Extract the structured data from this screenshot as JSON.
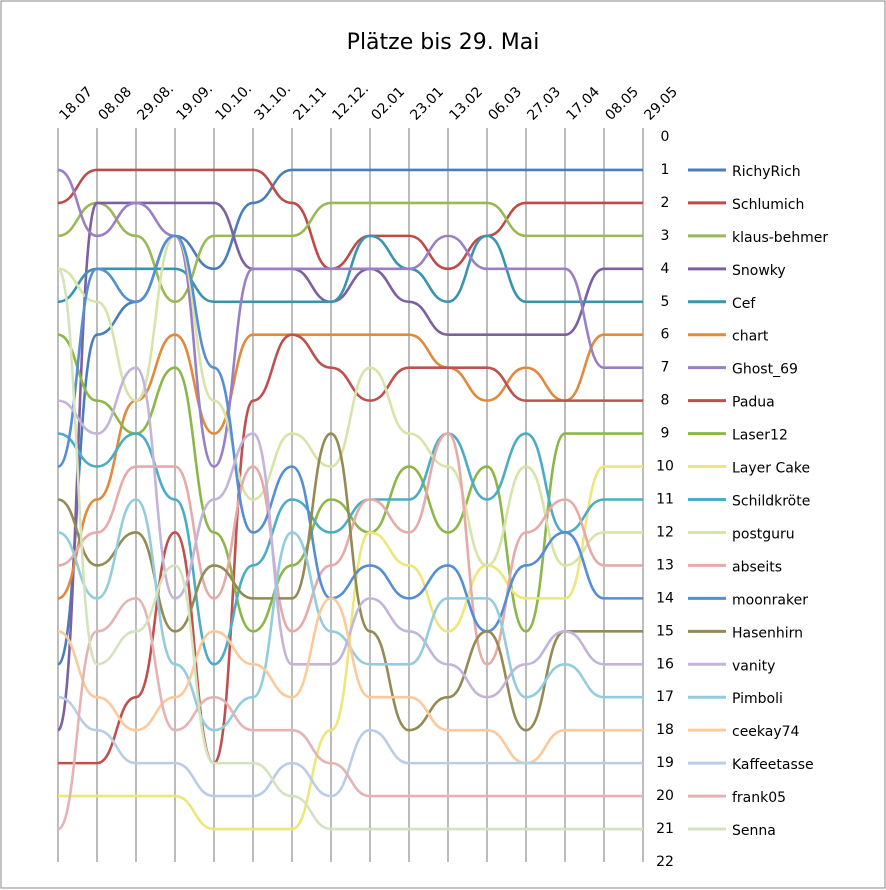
{
  "chart_data": {
    "type": "line",
    "title": "Plätze bis 29. Mai",
    "categories": [
      "18.07",
      "08.08",
      "29.08.",
      "19.09.",
      "10.10.",
      "31.10.",
      "21.11",
      "12.12.",
      "02.01",
      "23.01",
      "13.02",
      "06.03",
      "27.03",
      "17.04",
      "08.05",
      "29.05"
    ],
    "ylim": [
      0,
      22
    ],
    "yticks": [
      0,
      1,
      2,
      3,
      4,
      5,
      6,
      7,
      8,
      9,
      10,
      11,
      12,
      13,
      14,
      15,
      16,
      17,
      18,
      19,
      20,
      21,
      22
    ],
    "reverse_y": true,
    "grid": true,
    "legend": "right",
    "series": [
      {
        "name": "RichyRich",
        "color": "#4a7ebb",
        "values": [
          16,
          6,
          5,
          3,
          4,
          2,
          1,
          1,
          1,
          1,
          1,
          1,
          1,
          1,
          1,
          1
        ]
      },
      {
        "name": "Schlumich",
        "color": "#be4b48",
        "values": [
          2,
          1,
          1,
          1,
          1,
          1,
          2,
          4,
          3,
          3,
          4,
          3,
          2,
          2,
          2,
          2
        ]
      },
      {
        "name": "klaus-behmer",
        "color": "#98b954",
        "values": [
          3,
          2,
          3,
          5,
          3,
          3,
          3,
          2,
          2,
          2,
          2,
          2,
          3,
          3,
          3,
          3
        ]
      },
      {
        "name": "Snowky",
        "color": "#7d60a0",
        "values": [
          18,
          2,
          2,
          2,
          2,
          4,
          4,
          5,
          4,
          5,
          6,
          6,
          6,
          6,
          4,
          4
        ]
      },
      {
        "name": "Cef",
        "color": "#3795ad",
        "values": [
          5,
          4,
          4,
          4,
          5,
          5,
          5,
          5,
          3,
          4,
          5,
          3,
          5,
          5,
          5,
          5
        ]
      },
      {
        "name": "chart",
        "color": "#e08a3c",
        "values": [
          14,
          11,
          8,
          6,
          9,
          6,
          6,
          6,
          6,
          6,
          7,
          8,
          7,
          8,
          6,
          6
        ]
      },
      {
        "name": "Ghost_69",
        "color": "#9a7fc4",
        "values": [
          1,
          3,
          2,
          3,
          10,
          4,
          4,
          4,
          4,
          4,
          3,
          4,
          4,
          4,
          7,
          7
        ]
      },
      {
        "name": "Padua",
        "color": "#c0504d",
        "values": [
          19,
          19,
          17,
          12,
          19,
          8,
          6,
          7,
          8,
          7,
          7,
          7,
          8,
          8,
          8,
          8
        ]
      },
      {
        "name": "Laser12",
        "color": "#8cb748",
        "values": [
          6,
          8,
          9,
          7,
          12,
          15,
          13,
          11,
          12,
          10,
          12,
          10,
          15,
          9,
          9,
          9
        ]
      },
      {
        "name": "Layer Cake",
        "color": "#eee67a",
        "values": [
          20,
          20,
          20,
          20,
          21,
          21,
          21,
          18,
          12,
          13,
          15,
          13,
          14,
          14,
          10,
          10
        ]
      },
      {
        "name": "Schildkröte",
        "color": "#4bacc6",
        "values": [
          9,
          10,
          9,
          11,
          16,
          13,
          11,
          12,
          11,
          11,
          9,
          11,
          9,
          12,
          11,
          11
        ]
      },
      {
        "name": "postguru",
        "color": "#d7e4a8",
        "values": [
          4,
          5,
          8,
          3,
          8,
          11,
          9,
          10,
          7,
          9,
          10,
          13,
          10,
          13,
          12,
          12
        ]
      },
      {
        "name": "abseits",
        "color": "#e6aaa8",
        "values": [
          13,
          12,
          10,
          10,
          14,
          10,
          15,
          13,
          11,
          12,
          9,
          16,
          12,
          11,
          13,
          13
        ]
      },
      {
        "name": "moonraker",
        "color": "#558ed5",
        "values": [
          10,
          4,
          5,
          3,
          7,
          12,
          10,
          14,
          13,
          14,
          13,
          15,
          13,
          12,
          14,
          14
        ]
      },
      {
        "name": "Hasenhirn",
        "color": "#948a54",
        "values": [
          11,
          13,
          12,
          15,
          13,
          14,
          14,
          9,
          15,
          18,
          17,
          15,
          18,
          15,
          15,
          15
        ]
      },
      {
        "name": "vanity",
        "color": "#c3b4da",
        "values": [
          8,
          9,
          7,
          14,
          11,
          9,
          16,
          16,
          14,
          15,
          16,
          17,
          16,
          15,
          16,
          16
        ]
      },
      {
        "name": "Pimboli",
        "color": "#93cddd",
        "values": [
          12,
          14,
          11,
          16,
          18,
          17,
          12,
          15,
          16,
          16,
          14,
          14,
          17,
          16,
          17,
          17
        ]
      },
      {
        "name": "ceekay74",
        "color": "#fcc99a",
        "values": [
          15,
          17,
          18,
          17,
          15,
          16,
          17,
          14,
          17,
          17,
          18,
          18,
          19,
          18,
          18,
          18
        ]
      },
      {
        "name": "Kaffeetasse",
        "color": "#b9cde5",
        "values": [
          17,
          18,
          19,
          19,
          20,
          20,
          19,
          20,
          18,
          19,
          19,
          19,
          19,
          19,
          19,
          19
        ]
      },
      {
        "name": "frank05",
        "color": "#e4b4b4",
        "values": [
          21,
          15,
          14,
          18,
          17,
          18,
          18,
          19,
          20,
          20,
          20,
          20,
          20,
          20,
          20,
          20
        ]
      },
      {
        "name": "Senna",
        "color": "#d4e3bc",
        "values": [
          4,
          16,
          15,
          13,
          19,
          19,
          20,
          21,
          21,
          21,
          21,
          21,
          21,
          21,
          21,
          21
        ]
      }
    ]
  }
}
